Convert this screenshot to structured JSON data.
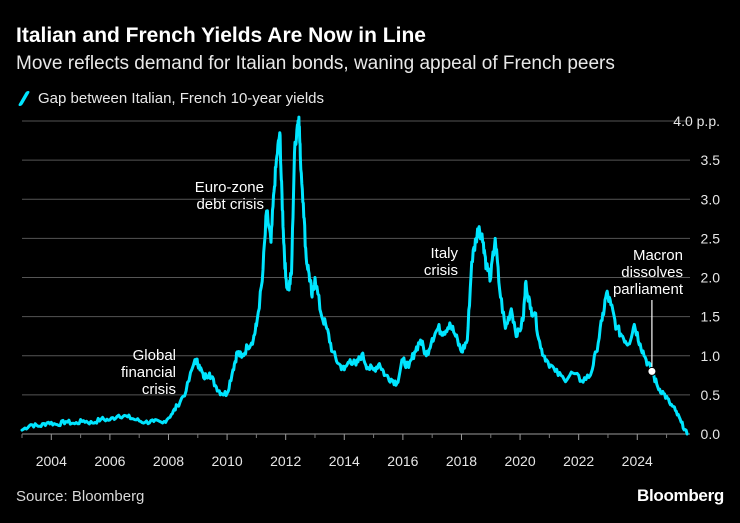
{
  "title": "Italian and French Yields Are Now in Line",
  "subtitle": "Move reflects demand for Italian bonds, waning appeal of French peers",
  "source": "Source: Bloomberg",
  "brand": "Bloomberg",
  "colors": {
    "line": "#00e5ff",
    "grid": "#555555",
    "background": "#000000"
  },
  "chart_data": {
    "type": "line",
    "title": "Italian and French Yields Are Now in Line",
    "series": [
      {
        "name": "Gap between Italian, French 10-year yields",
        "x": [
          2003.0,
          2003.3,
          2003.6,
          2003.9,
          2004.2,
          2004.5,
          2004.8,
          2005.1,
          2005.4,
          2005.7,
          2006.0,
          2006.3,
          2006.6,
          2006.9,
          2007.2,
          2007.5,
          2007.8,
          2008.1,
          2008.3,
          2008.6,
          2008.9,
          2009.05,
          2009.2,
          2009.4,
          2009.6,
          2009.8,
          2010.0,
          2010.2,
          2010.35,
          2010.5,
          2010.7,
          2010.9,
          2011.0,
          2011.2,
          2011.35,
          2011.5,
          2011.6,
          2011.7,
          2011.8,
          2011.85,
          2011.92,
          2012.0,
          2012.1,
          2012.2,
          2012.3,
          2012.4,
          2012.45,
          2012.5,
          2012.6,
          2012.7,
          2012.8,
          2012.9,
          2013.0,
          2013.2,
          2013.4,
          2013.6,
          2013.8,
          2014.0,
          2014.2,
          2014.4,
          2014.6,
          2014.8,
          2015.0,
          2015.2,
          2015.4,
          2015.6,
          2015.8,
          2016.0,
          2016.2,
          2016.4,
          2016.6,
          2016.8,
          2017.0,
          2017.2,
          2017.4,
          2017.6,
          2017.8,
          2018.0,
          2018.2,
          2018.35,
          2018.5,
          2018.6,
          2018.75,
          2018.85,
          2019.0,
          2019.15,
          2019.3,
          2019.5,
          2019.7,
          2019.9,
          2020.1,
          2020.2,
          2020.35,
          2020.5,
          2020.7,
          2020.9,
          2021.2,
          2021.5,
          2021.8,
          2022.1,
          2022.4,
          2022.6,
          2022.8,
          2022.95,
          2023.1,
          2023.3,
          2023.5,
          2023.7,
          2023.9,
          2024.1,
          2024.3,
          2024.5,
          2024.7,
          2024.9,
          2025.1,
          2025.3,
          2025.5,
          2025.7
        ],
        "values": [
          0.05,
          0.12,
          0.1,
          0.15,
          0.12,
          0.16,
          0.13,
          0.17,
          0.14,
          0.19,
          0.18,
          0.24,
          0.22,
          0.18,
          0.15,
          0.16,
          0.14,
          0.25,
          0.36,
          0.55,
          0.95,
          0.88,
          0.72,
          0.78,
          0.62,
          0.52,
          0.52,
          0.82,
          1.05,
          0.98,
          1.12,
          1.22,
          1.38,
          1.95,
          2.85,
          2.45,
          3.1,
          3.55,
          3.85,
          3.25,
          2.6,
          2.0,
          1.85,
          2.05,
          3.6,
          3.95,
          4.05,
          3.55,
          2.95,
          2.25,
          2.05,
          1.75,
          2.0,
          1.55,
          1.35,
          1.05,
          0.9,
          0.82,
          0.95,
          0.88,
          1.02,
          0.85,
          0.82,
          0.9,
          0.75,
          0.7,
          0.65,
          0.95,
          0.85,
          1.05,
          1.2,
          1.0,
          1.22,
          1.35,
          1.3,
          1.42,
          1.25,
          1.05,
          1.2,
          2.2,
          2.5,
          2.65,
          2.45,
          2.15,
          2.0,
          2.5,
          1.85,
          1.35,
          1.6,
          1.25,
          1.45,
          1.95,
          1.6,
          1.55,
          1.1,
          0.95,
          0.8,
          0.7,
          0.78,
          0.68,
          0.75,
          1.05,
          1.45,
          1.8,
          1.65,
          1.35,
          1.25,
          1.15,
          1.4,
          1.15,
          0.95,
          0.8,
          0.6,
          0.52,
          0.4,
          0.3,
          0.15,
          0.0
        ]
      }
    ],
    "xlabel": "",
    "ylabel": "",
    "xlim": [
      2003.0,
      2025.8
    ],
    "ylim": [
      0,
      4.0
    ],
    "x_ticks": [
      2004,
      2006,
      2008,
      2010,
      2012,
      2014,
      2016,
      2018,
      2020,
      2022,
      2024
    ],
    "x_tick_labels": [
      "2004",
      "2006",
      "2008",
      "2010",
      "2012",
      "2014",
      "2016",
      "2018",
      "2020",
      "2022",
      "2024"
    ],
    "y_ticks": [
      0.0,
      0.5,
      1.0,
      1.5,
      2.0,
      2.5,
      3.0,
      3.5,
      4.0
    ],
    "y_tick_labels": [
      "0.0",
      "0.5",
      "1.0",
      "1.5",
      "2.0",
      "2.5",
      "3.0",
      "3.5",
      "4.0 p.p."
    ],
    "grid": true,
    "legend": "top-left",
    "annotations": [
      {
        "name": "global-financial-crisis",
        "lines": [
          "Global",
          "financial",
          "crisis"
        ],
        "x": 2008.3,
        "y": 0.9
      },
      {
        "name": "euro-zone-debt-crisis",
        "lines": [
          "Euro-zone",
          "debt crisis"
        ],
        "x": 2011.7,
        "y": 3.2
      },
      {
        "name": "italy-crisis",
        "lines": [
          "Italy",
          "crisis"
        ],
        "x": 2018.0,
        "y": 2.3
      },
      {
        "name": "macron-dissolves-parliament",
        "lines": [
          "Macron",
          "dissolves",
          "parliament"
        ],
        "x": 2024.5,
        "y": 0.8,
        "marker": true
      }
    ]
  }
}
